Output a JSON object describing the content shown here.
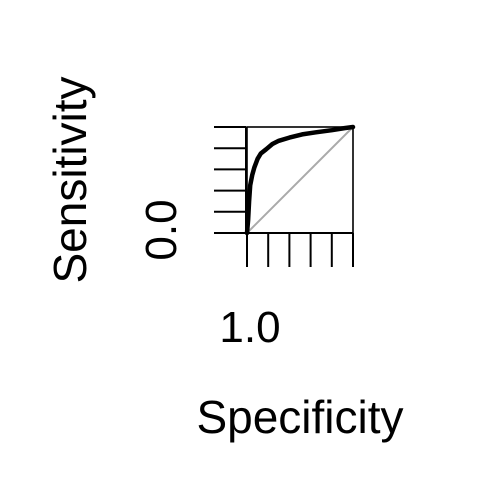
{
  "chart_data": {
    "type": "line",
    "title": "",
    "xlabel": "Specificity",
    "ylabel": "Sensitivity",
    "x_reversed": true,
    "xlim": [
      1.0,
      0.0
    ],
    "ylim": [
      0.0,
      1.0
    ],
    "x_ticks": [
      1.0,
      0.8,
      0.6,
      0.4,
      0.2,
      0.0
    ],
    "x_tick_labels": [
      "1.0",
      "",
      "",
      "",
      "",
      ""
    ],
    "y_ticks": [
      0.0,
      0.2,
      0.4,
      0.6,
      0.8,
      1.0
    ],
    "y_tick_labels": [
      "0.0",
      "",
      "",
      "",
      "",
      ""
    ],
    "grid": false,
    "series": [
      {
        "color": "#000000",
        "points": [
          {
            "x": 1.0,
            "y": 0.0
          },
          {
            "x": 0.99,
            "y": 0.12
          },
          {
            "x": 0.98,
            "y": 0.3
          },
          {
            "x": 0.97,
            "y": 0.45
          },
          {
            "x": 0.95,
            "y": 0.55
          },
          {
            "x": 0.93,
            "y": 0.62
          },
          {
            "x": 0.9,
            "y": 0.7
          },
          {
            "x": 0.87,
            "y": 0.75
          },
          {
            "x": 0.82,
            "y": 0.79
          },
          {
            "x": 0.76,
            "y": 0.84
          },
          {
            "x": 0.7,
            "y": 0.87
          },
          {
            "x": 0.6,
            "y": 0.9
          },
          {
            "x": 0.48,
            "y": 0.93
          },
          {
            "x": 0.35,
            "y": 0.95
          },
          {
            "x": 0.2,
            "y": 0.97
          },
          {
            "x": 0.08,
            "y": 0.99
          },
          {
            "x": 0.0,
            "y": 1.0
          }
        ]
      }
    ],
    "reference_line": {
      "color": "#aaaaaa",
      "points": [
        {
          "x": 1.0,
          "y": 0.0
        },
        {
          "x": 0.0,
          "y": 1.0
        }
      ]
    }
  }
}
